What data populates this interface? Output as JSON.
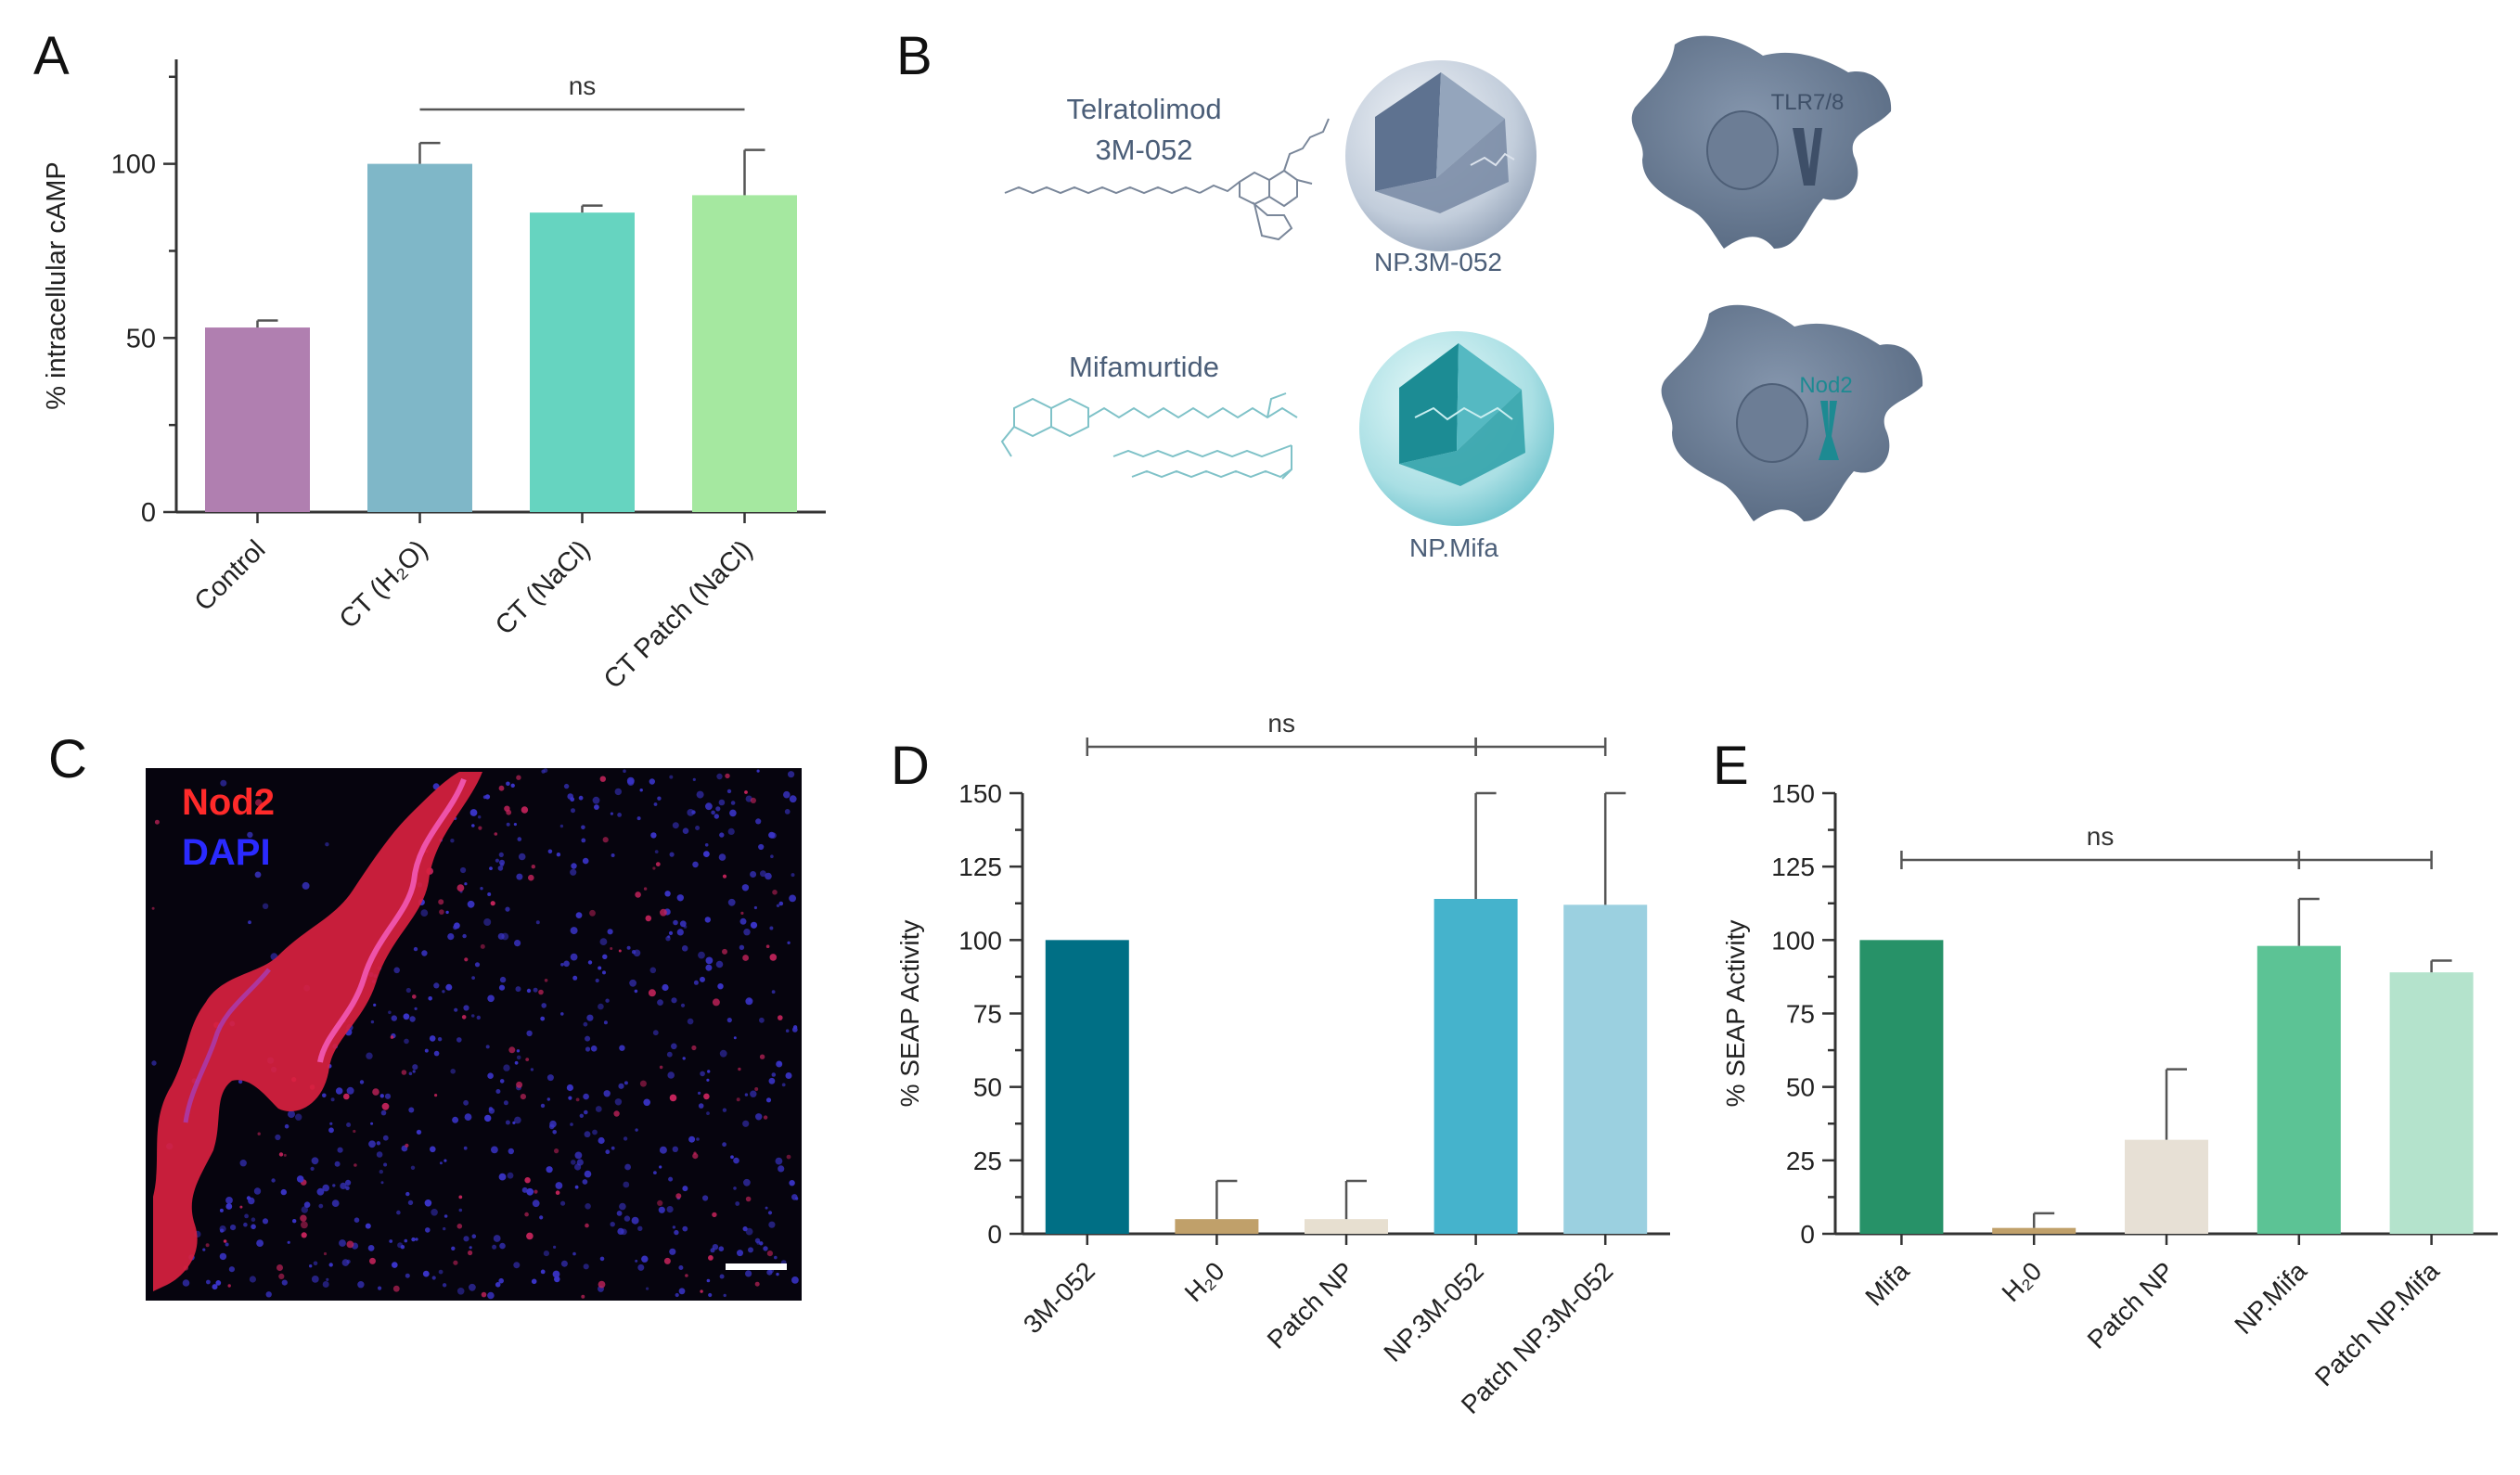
{
  "panels": {
    "A": {
      "letter": "A"
    },
    "B": {
      "letter": "B",
      "row1": {
        "drug_name": "Telratolimod",
        "drug_code": "3M-052",
        "nanoparticle_label": "NP.3M-052",
        "receptor_label": "TLR7/8"
      },
      "row2": {
        "drug_name": "Mifamurtide",
        "nanoparticle_label": "NP.Mifa",
        "receptor_label": "Nod2"
      }
    },
    "C": {
      "letter": "C",
      "stain_labels": [
        {
          "text": "Nod2",
          "color": "#ff2a2a"
        },
        {
          "text": "DAPI",
          "color": "#2a2aff"
        }
      ]
    },
    "D": {
      "letter": "D"
    },
    "E": {
      "letter": "E"
    }
  },
  "chart_data": [
    {
      "panel": "A",
      "type": "bar",
      "ylabel": "% intracellular cAMP",
      "ylim": [
        0,
        130
      ],
      "yticks": [
        0,
        50,
        100
      ],
      "categories": [
        "Control",
        "CT (H₂O)",
        "CT (NaCl)",
        "CT Patch (NaCl)"
      ],
      "values": [
        53,
        100,
        86,
        91
      ],
      "errors": [
        2,
        6,
        2,
        13
      ],
      "colors": [
        "#b07fb0",
        "#7fb7c8",
        "#66d4c0",
        "#a5e8a0"
      ],
      "significance": [
        {
          "from": 1,
          "to": 3,
          "label": "ns"
        }
      ]
    },
    {
      "panel": "D",
      "type": "bar",
      "ylabel": "% SEAP Activity",
      "ylim": [
        0,
        150
      ],
      "yticks": [
        0,
        25,
        50,
        75,
        100,
        125,
        150
      ],
      "categories": [
        "3M-052",
        "H₂0",
        "Patch NP",
        "NP.3M-052",
        "Patch NP.3M-052"
      ],
      "values": [
        100,
        5,
        5,
        114,
        112
      ],
      "errors": [
        0,
        13,
        13,
        36,
        38
      ],
      "colors": [
        "#006f85",
        "#c0a06a",
        "#e7dfd0",
        "#45b3cc",
        "#9bd0e0"
      ],
      "significance": [
        {
          "from": 0,
          "to": 3,
          "label": "ns"
        },
        {
          "from": 3,
          "to": 4,
          "label": ""
        }
      ]
    },
    {
      "panel": "E",
      "type": "bar",
      "ylabel": "% SEAP Activity",
      "ylim": [
        0,
        150
      ],
      "yticks": [
        0,
        25,
        50,
        75,
        100,
        125,
        150
      ],
      "categories": [
        "Mifa",
        "H₂0",
        "Patch NP",
        "NP.Mifa",
        "Patch NP.Mifa"
      ],
      "values": [
        100,
        2,
        32,
        98,
        89
      ],
      "errors": [
        0,
        5,
        24,
        16,
        4
      ],
      "colors": [
        "#279268",
        "#c0a06a",
        "#e7e0d5",
        "#5cc395",
        "#b4e3cc"
      ],
      "significance": [
        {
          "from": 0,
          "to": 3,
          "label": "ns"
        },
        {
          "from": 3,
          "to": 4,
          "label": ""
        }
      ]
    }
  ]
}
